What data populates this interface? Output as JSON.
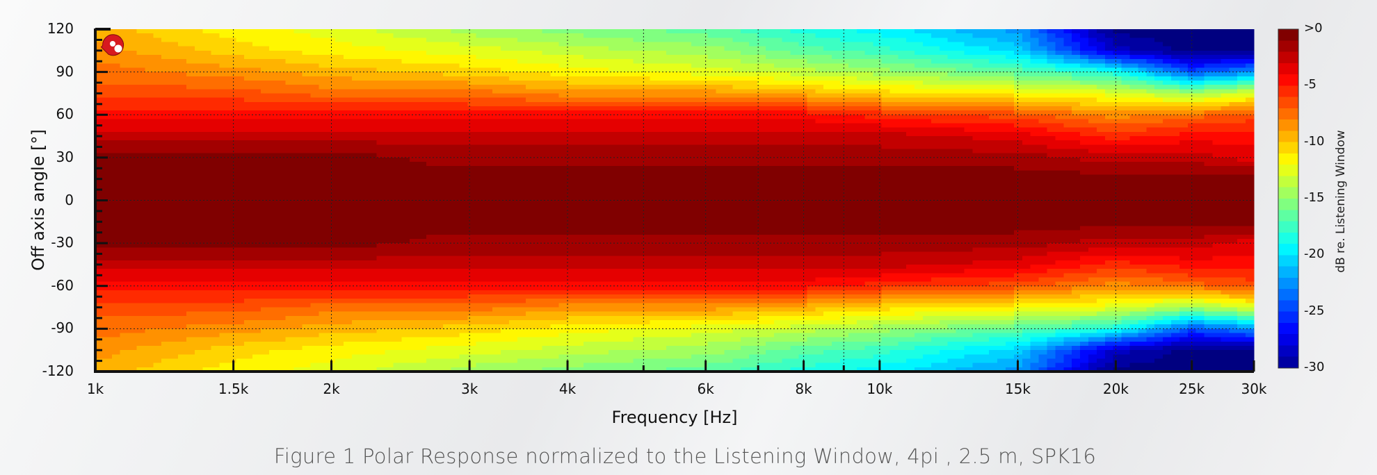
{
  "chart_data": {
    "type": "heatmap",
    "title": "",
    "xlabel": "Frequency [Hz]",
    "ylabel": "Off axis angle [°]",
    "colorbar_label": "dB re. Listening Window",
    "xscale": "log",
    "xlim": [
      1000,
      30000
    ],
    "ylim": [
      -120,
      120
    ],
    "zlim": [
      -30,
      0
    ],
    "colormap": "jet",
    "grid": true,
    "x_ticks": [
      1000,
      1500,
      2000,
      3000,
      4000,
      6000,
      8000,
      10000,
      15000,
      20000,
      25000,
      30000
    ],
    "x_tick_labels": [
      "1k",
      "1.5k",
      "2k",
      "3k",
      "4k",
      "6k",
      "8k",
      "10k",
      "15k",
      "20k",
      "25k",
      "30k"
    ],
    "x_unlabeled_gridlines": [
      5000,
      7000,
      9000
    ],
    "y_ticks": [
      120,
      90,
      60,
      30,
      0,
      -30,
      -60,
      -90,
      -120
    ],
    "y_tick_labels": [
      "120",
      "90",
      "60",
      "30",
      "0",
      "-30",
      "-60",
      "-90",
      "-120"
    ],
    "colorbar_ticks": [
      0,
      -5,
      -10,
      -15,
      -20,
      -25,
      -30
    ],
    "colorbar_tick_labels": [
      ">0",
      "-5",
      "-10",
      "-15",
      "-20",
      "-25",
      "-30"
    ],
    "frequencies": [
      1000,
      1500,
      2000,
      3000,
      4000,
      6000,
      8000,
      10000,
      15000,
      20000,
      25000,
      30000
    ],
    "abs_angles": [
      0,
      15,
      30,
      45,
      60,
      75,
      90,
      105,
      120
    ],
    "values_db_by_frequency": [
      [
        0,
        0,
        0,
        -2,
        -4,
        -6,
        -7,
        -8,
        -9
      ],
      [
        0,
        0,
        0,
        -2,
        -4,
        -6,
        -8,
        -10,
        -11
      ],
      [
        0,
        0,
        0,
        -2,
        -4,
        -7,
        -9,
        -11,
        -12
      ],
      [
        0,
        0,
        -1,
        -2,
        -4,
        -7,
        -10,
        -12,
        -14
      ],
      [
        0,
        0,
        -1,
        -2,
        -4,
        -8,
        -11,
        -13,
        -15
      ],
      [
        0,
        0,
        -1,
        -2,
        -4,
        -8,
        -12,
        -14,
        -16
      ],
      [
        0,
        0,
        -1,
        -2,
        -4,
        -9,
        -13,
        -16,
        -18
      ],
      [
        0,
        0,
        -1,
        -2,
        -5,
        -10,
        -14,
        -17,
        -19
      ],
      [
        0,
        0,
        -1,
        -3,
        -6,
        -11,
        -16,
        -20,
        -22
      ],
      [
        0,
        0,
        -2,
        -5,
        -8,
        -12,
        -18,
        -28,
        -30
      ],
      [
        0,
        0,
        -2,
        -4,
        -7,
        -14,
        -24,
        -30,
        -30
      ],
      [
        0,
        0,
        -3,
        -4,
        -6,
        -12,
        -22,
        -30,
        -30
      ]
    ],
    "symmetric_about_0": true
  },
  "caption": "Figure 1 Polar Response normalized to the Listening Window, 4pi , 2.5 m, SPK16",
  "colors": {
    "logo": "#d7191f",
    "axis": "#111111"
  }
}
